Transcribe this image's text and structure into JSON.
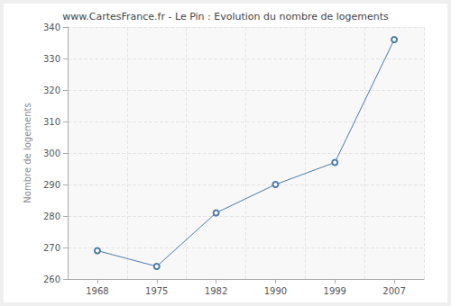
{
  "chart_data": {
    "type": "line",
    "title": "www.CartesFrance.fr - Le Pin : Evolution du nombre de logements",
    "y_label": "Nombre de logements",
    "categories": [
      "1968",
      "1975",
      "1982",
      "1990",
      "1999",
      "2007"
    ],
    "values": [
      269,
      264,
      281,
      290,
      297,
      336
    ],
    "color": "#4e79a7",
    "marker": "circle",
    "ylim": [
      260,
      340
    ],
    "yticks": [
      260,
      270,
      280,
      290,
      300,
      310,
      320,
      330,
      340
    ],
    "grid": true
  }
}
